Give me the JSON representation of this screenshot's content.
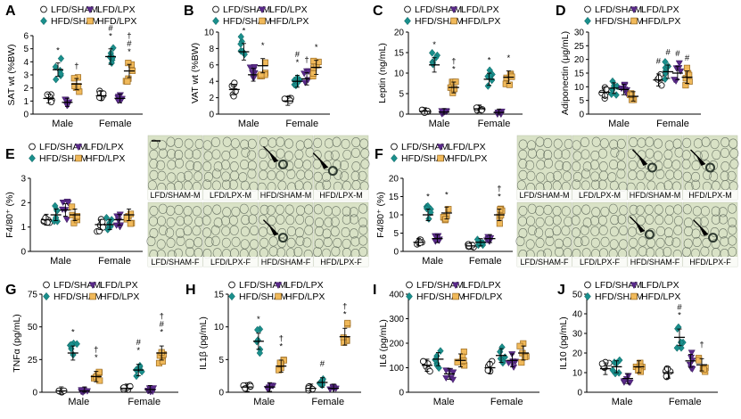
{
  "figure": {
    "colors": {
      "LFD_SHAM": "#ffffff",
      "HFD_SHAM": "#1a8f8c",
      "LFD_LPX": "#5a2a8a",
      "HFD_LPX": "#f0b95a",
      "tissue": "#d9e2c6",
      "membrane": "#6b7566",
      "crown": "#2e3a30"
    },
    "legend": [
      "LFD/SHAM",
      "LFD/LPX",
      "HFD/SHAM",
      "HFD/LPX"
    ],
    "groups": [
      "Male",
      "Female"
    ],
    "histo_E": {
      "top": [
        "LFD/SHAM-M",
        "LFD/LPX-M",
        "HFD/SHAM-M",
        "HFD/LPX-M"
      ],
      "bottom": [
        "LFD/SHAM-F",
        "LFD/LPX-F",
        "HFD/SHAM-F",
        "HFD/LPX-F"
      ]
    },
    "histo_F": {
      "top": [
        "LFD/SHAM-M",
        "LFD/LPX-M",
        "HFD/SHAM-M",
        "HFD/LPX-M"
      ],
      "bottom": [
        "LFD/SHAM-F",
        "LFD/LPX-F",
        "HFD/SHAM-F",
        "HFD/LPX-F"
      ]
    }
  },
  "chart_data": [
    {
      "panel": "A",
      "type": "scatter",
      "ylabel": "SAT wt (%BW)",
      "ylim": [
        0,
        6
      ],
      "yticks": [
        0,
        1,
        2,
        3,
        4,
        5,
        6
      ],
      "categories": [
        "Male",
        "Female"
      ],
      "series": [
        {
          "name": "LFD/SHAM",
          "means": [
            1.2,
            1.4
          ]
        },
        {
          "name": "HFD/SHAM",
          "means": [
            3.4,
            4.4
          ]
        },
        {
          "name": "LFD/LPX",
          "means": [
            0.9,
            1.2
          ]
        },
        {
          "name": "HFD/LPX",
          "means": [
            2.3,
            3.3
          ]
        }
      ],
      "annotations": [
        [
          "",
          "*",
          "",
          "†"
        ],
        [
          "",
          "# *",
          "",
          "† # *"
        ]
      ]
    },
    {
      "panel": "B",
      "type": "scatter",
      "ylabel": "VAT wt (%BW)",
      "ylim": [
        0,
        10
      ],
      "yticks": [
        0,
        2,
        4,
        6,
        8,
        10
      ],
      "categories": [
        "Male",
        "Female"
      ],
      "series": [
        {
          "name": "LFD/SHAM",
          "means": [
            3.0,
            1.6
          ]
        },
        {
          "name": "HFD/SHAM",
          "means": [
            7.6,
            4.0
          ]
        },
        {
          "name": "LFD/LPX",
          "means": [
            4.8,
            4.3
          ]
        },
        {
          "name": "HFD/LPX",
          "means": [
            5.9,
            5.7
          ]
        }
      ],
      "annotations": [
        [
          "",
          "*",
          "",
          "*"
        ],
        [
          "",
          "# *",
          "†",
          "*"
        ]
      ]
    },
    {
      "panel": "C",
      "type": "scatter",
      "ylabel": "Leptin (ng/mL)",
      "ylim": [
        0,
        20
      ],
      "yticks": [
        0,
        5,
        10,
        15,
        20
      ],
      "categories": [
        "Male",
        "Female"
      ],
      "series": [
        {
          "name": "LFD/SHAM",
          "means": [
            0.7,
            1.3
          ]
        },
        {
          "name": "HFD/SHAM",
          "means": [
            12.0,
            8.5
          ]
        },
        {
          "name": "LFD/LPX",
          "means": [
            0.5,
            0.4
          ]
        },
        {
          "name": "HFD/LPX",
          "means": [
            6.5,
            9.0
          ]
        }
      ],
      "annotations": [
        [
          "",
          "*",
          "",
          "† *"
        ],
        [
          "",
          "*",
          "",
          "*"
        ]
      ]
    },
    {
      "panel": "D",
      "type": "scatter",
      "ylabel": "Adiponectin (μg/mL)",
      "ylim": [
        0,
        30
      ],
      "yticks": [
        0,
        5,
        10,
        15,
        20,
        25,
        30
      ],
      "categories": [
        "Male",
        "Female"
      ],
      "series": [
        {
          "name": "LFD/SHAM",
          "means": [
            8.0,
            12.5
          ]
        },
        {
          "name": "HFD/SHAM",
          "means": [
            9.5,
            15.5
          ]
        },
        {
          "name": "LFD/LPX",
          "means": [
            9.0,
            15.0
          ]
        },
        {
          "name": "HFD/LPX",
          "means": [
            6.5,
            13.5
          ]
        }
      ],
      "annotations": [
        [
          "",
          "",
          "",
          ""
        ],
        [
          "#",
          "#",
          "#",
          "#"
        ]
      ]
    },
    {
      "panel": "E",
      "type": "scatter",
      "ylabel": "F4/80⁺ (%)",
      "ylim": [
        0,
        3
      ],
      "yticks": [
        0,
        1,
        2,
        3
      ],
      "categories": [
        "Male",
        "Female"
      ],
      "series": [
        {
          "name": "LFD/SHAM",
          "means": [
            1.3,
            1.1
          ]
        },
        {
          "name": "HFD/SHAM",
          "means": [
            1.5,
            1.1
          ]
        },
        {
          "name": "LFD/LPX",
          "means": [
            1.7,
            1.3
          ]
        },
        {
          "name": "HFD/LPX",
          "means": [
            1.5,
            1.5
          ]
        }
      ],
      "annotations": [
        [
          "",
          "",
          "",
          ""
        ],
        [
          "",
          "",
          "",
          ""
        ]
      ]
    },
    {
      "panel": "F",
      "type": "scatter",
      "ylabel": "F4/80⁺ (%)",
      "ylim": [
        0,
        20
      ],
      "yticks": [
        0,
        5,
        10,
        15,
        20
      ],
      "categories": [
        "Male",
        "Female"
      ],
      "series": [
        {
          "name": "LFD/SHAM",
          "means": [
            2.5,
            1.5
          ]
        },
        {
          "name": "HFD/SHAM",
          "means": [
            10.0,
            2.5
          ]
        },
        {
          "name": "LFD/LPX",
          "means": [
            3.5,
            3.5
          ]
        },
        {
          "name": "HFD/LPX",
          "means": [
            10.5,
            10.0
          ]
        }
      ],
      "annotations": [
        [
          "",
          "*",
          "",
          "*"
        ],
        [
          "",
          "",
          "",
          "† *"
        ]
      ]
    },
    {
      "panel": "G",
      "type": "scatter",
      "ylabel": "TNFα (pg/mL)",
      "ylim": [
        0,
        75
      ],
      "yticks": [
        0,
        25,
        50,
        75
      ],
      "categories": [
        "Male",
        "Female"
      ],
      "series": [
        {
          "name": "LFD/SHAM",
          "means": [
            1,
            3
          ]
        },
        {
          "name": "HFD/SHAM",
          "means": [
            30,
            17
          ]
        },
        {
          "name": "LFD/LPX",
          "means": [
            1,
            2
          ]
        },
        {
          "name": "HFD/LPX",
          "means": [
            12,
            30
          ]
        }
      ],
      "annotations": [
        [
          "",
          "*",
          "",
          "† *"
        ],
        [
          "",
          "# *",
          "",
          "† # *"
        ]
      ]
    },
    {
      "panel": "H",
      "type": "scatter",
      "ylabel": "IL1β (pg/mL)",
      "ylim": [
        0,
        15
      ],
      "yticks": [
        0,
        5,
        10,
        15
      ],
      "categories": [
        "Male",
        "Female"
      ],
      "series": [
        {
          "name": "LFD/SHAM",
          "means": [
            0.8,
            0.6
          ]
        },
        {
          "name": "HFD/SHAM",
          "means": [
            7.8,
            1.5
          ]
        },
        {
          "name": "LFD/LPX",
          "means": [
            0.8,
            0.6
          ]
        },
        {
          "name": "HFD/LPX",
          "means": [
            4.0,
            8.5
          ]
        }
      ],
      "annotations": [
        [
          "",
          "*",
          "",
          "† *"
        ],
        [
          "",
          "#",
          "",
          "† *"
        ]
      ]
    },
    {
      "panel": "I",
      "type": "scatter",
      "ylabel": "IL6 (pg/mL)",
      "ylim": [
        0,
        400
      ],
      "yticks": [
        0,
        100,
        200,
        300,
        400
      ],
      "categories": [
        "Male",
        "Female"
      ],
      "series": [
        {
          "name": "LFD/SHAM",
          "means": [
            110,
            100
          ]
        },
        {
          "name": "HFD/SHAM",
          "means": [
            135,
            150
          ]
        },
        {
          "name": "LFD/LPX",
          "means": [
            75,
            130
          ]
        },
        {
          "name": "HFD/LPX",
          "means": [
            130,
            160
          ]
        }
      ],
      "annotations": [
        [
          "",
          "",
          "",
          ""
        ],
        [
          "",
          "",
          "",
          ""
        ]
      ]
    },
    {
      "panel": "J",
      "type": "scatter",
      "ylabel": "IL10 (pg/mL)",
      "ylim": [
        0,
        50
      ],
      "yticks": [
        0,
        10,
        20,
        30,
        40,
        50
      ],
      "categories": [
        "Male",
        "Female"
      ],
      "series": [
        {
          "name": "LFD/SHAM",
          "means": [
            12,
            10
          ]
        },
        {
          "name": "HFD/SHAM",
          "means": [
            13,
            28
          ]
        },
        {
          "name": "LFD/LPX",
          "means": [
            7,
            16
          ]
        },
        {
          "name": "HFD/LPX",
          "means": [
            13,
            14
          ]
        }
      ],
      "annotations": [
        [
          "",
          "",
          "",
          ""
        ],
        [
          "",
          "# *",
          "",
          "†"
        ]
      ]
    }
  ]
}
